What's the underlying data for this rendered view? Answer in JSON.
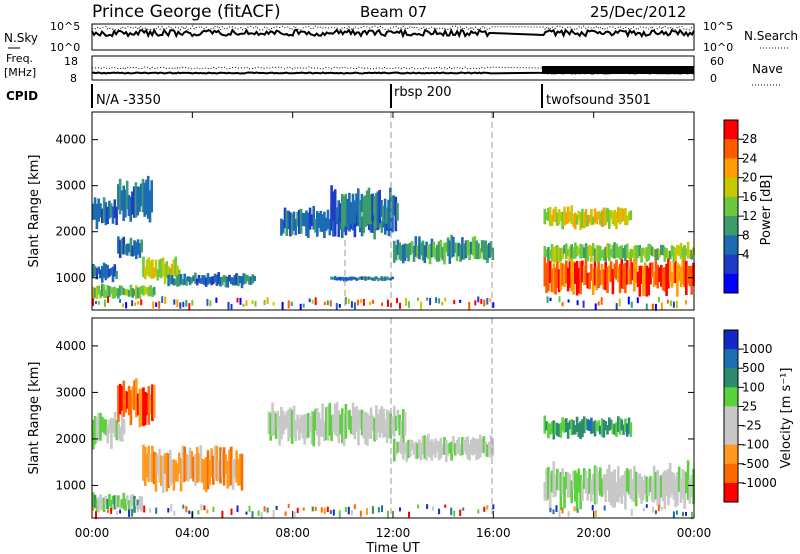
{
  "header": {
    "station": "Prince George (fitACF)",
    "beam": "Beam 07",
    "date": "25/Dec/2012"
  },
  "panel_labels": {
    "nsky": "N.Sky",
    "nsky_ticks": [
      "10^5",
      "10^0"
    ],
    "nsearch": "N.Search",
    "nsearch_ticks": [
      "10^5",
      "10^0"
    ],
    "freq": "Freq.",
    "freq_unit": "[MHz]",
    "freq_ticks": [
      "18",
      "8"
    ],
    "nave": "Nave",
    "nave_ticks": [
      "60",
      "0"
    ],
    "cpid": "CPID"
  },
  "cpid_segments": [
    {
      "label": "N/A -3350",
      "start": 0
    },
    {
      "label": "rbsp 200",
      "start": 12
    },
    {
      "label": "twofsound 3501",
      "start": 18
    }
  ],
  "colorbars": {
    "power": {
      "label": "Power [dB]",
      "ticks": [
        "28",
        "24",
        "20",
        "16",
        "12",
        "8",
        "4"
      ],
      "colors": [
        "#ff0000",
        "#ff5a00",
        "#ff9e00",
        "#c8c800",
        "#6cc83c",
        "#3c9c6c",
        "#1c6cb4",
        "#1e3cc8",
        "#0000ff"
      ]
    },
    "velocity": {
      "label": "Velocity [m s⁻¹]",
      "ticks": [
        "1000",
        "500",
        "100",
        "25",
        "-25",
        "-100",
        "-500",
        "-1000"
      ],
      "colors": [
        "#1428c8",
        "#1e6eb4",
        "#2e8c6e",
        "#5ad23c",
        "#c8c8c8",
        "#c8c8c8",
        "#ff9a1e",
        "#ff6a00",
        "#ff0000"
      ]
    }
  },
  "chart_data": [
    {
      "type": "heatmap",
      "name": "power",
      "ylabel": "Slant Range [km]",
      "xlim": [
        0,
        24
      ],
      "ylim": [
        300,
        4600
      ],
      "yticks": [
        "1000",
        "2000",
        "3000",
        "4000"
      ],
      "gap": [
        16,
        18
      ],
      "features": [
        {
          "t0": 0.0,
          "t1": 1.0,
          "r": 2400,
          "w": 350,
          "level": 6
        },
        {
          "t0": 1.0,
          "t1": 2.4,
          "r": 2650,
          "w": 550,
          "level": 6
        },
        {
          "t0": 0.0,
          "t1": 2.5,
          "r": 700,
          "w": 180,
          "level": 4
        },
        {
          "t0": 0.0,
          "t1": 1.0,
          "r": 1100,
          "w": 220,
          "level": 6
        },
        {
          "t0": 1.0,
          "t1": 2.0,
          "r": 1650,
          "w": 250,
          "level": 6
        },
        {
          "t0": 2.0,
          "t1": 3.5,
          "r": 1150,
          "w": 300,
          "level": 3
        },
        {
          "t0": 3.0,
          "t1": 6.5,
          "r": 950,
          "w": 160,
          "level": 6
        },
        {
          "t0": 7.5,
          "t1": 12.0,
          "r": 2200,
          "w": 350,
          "level": 6
        },
        {
          "t0": 9.5,
          "t1": 12.2,
          "r": 2500,
          "w": 500,
          "level": 6
        },
        {
          "t0": 12.0,
          "t1": 16.0,
          "r": 1600,
          "w": 300,
          "level": 5
        },
        {
          "t0": 9.5,
          "t1": 12.0,
          "r": 980,
          "w": 60,
          "level": 6
        },
        {
          "t0": 18.0,
          "t1": 24.0,
          "r": 1050,
          "w": 450,
          "level": 1
        },
        {
          "t0": 18.0,
          "t1": 24.0,
          "r": 1550,
          "w": 220,
          "level": 4
        },
        {
          "t0": 18.0,
          "t1": 21.5,
          "r": 2300,
          "w": 250,
          "level": 3
        }
      ]
    },
    {
      "type": "heatmap",
      "name": "velocity",
      "ylabel": "Slant Range [km]",
      "xlabel": "Time UT",
      "xlim": [
        0,
        24
      ],
      "xticks": [
        "00:00",
        "04:00",
        "08:00",
        "12:00",
        "16:00",
        "20:00",
        "00:00"
      ],
      "ylim": [
        300,
        4600
      ],
      "yticks": [
        "1000",
        "2000",
        "3000",
        "4000"
      ],
      "gap": [
        16,
        18
      ],
      "features": [
        {
          "t0": 0.0,
          "t1": 1.3,
          "r": 2200,
          "w": 400,
          "level": 4
        },
        {
          "t0": 1.0,
          "t1": 2.5,
          "r": 2800,
          "w": 500,
          "level": 7
        },
        {
          "t0": 0.0,
          "t1": 2.0,
          "r": 620,
          "w": 220,
          "level": 3
        },
        {
          "t0": 2.0,
          "t1": 6.0,
          "r": 1350,
          "w": 500,
          "level": 6
        },
        {
          "t0": 7.0,
          "t1": 12.5,
          "r": 2300,
          "w": 450,
          "level": 4
        },
        {
          "t0": 12.0,
          "t1": 16.0,
          "r": 1800,
          "w": 300,
          "level": 4
        },
        {
          "t0": 18.0,
          "t1": 24.0,
          "r": 1000,
          "w": 500,
          "level": 4
        },
        {
          "t0": 18.0,
          "t1": 21.5,
          "r": 2250,
          "w": 250,
          "level": 2
        }
      ]
    }
  ]
}
